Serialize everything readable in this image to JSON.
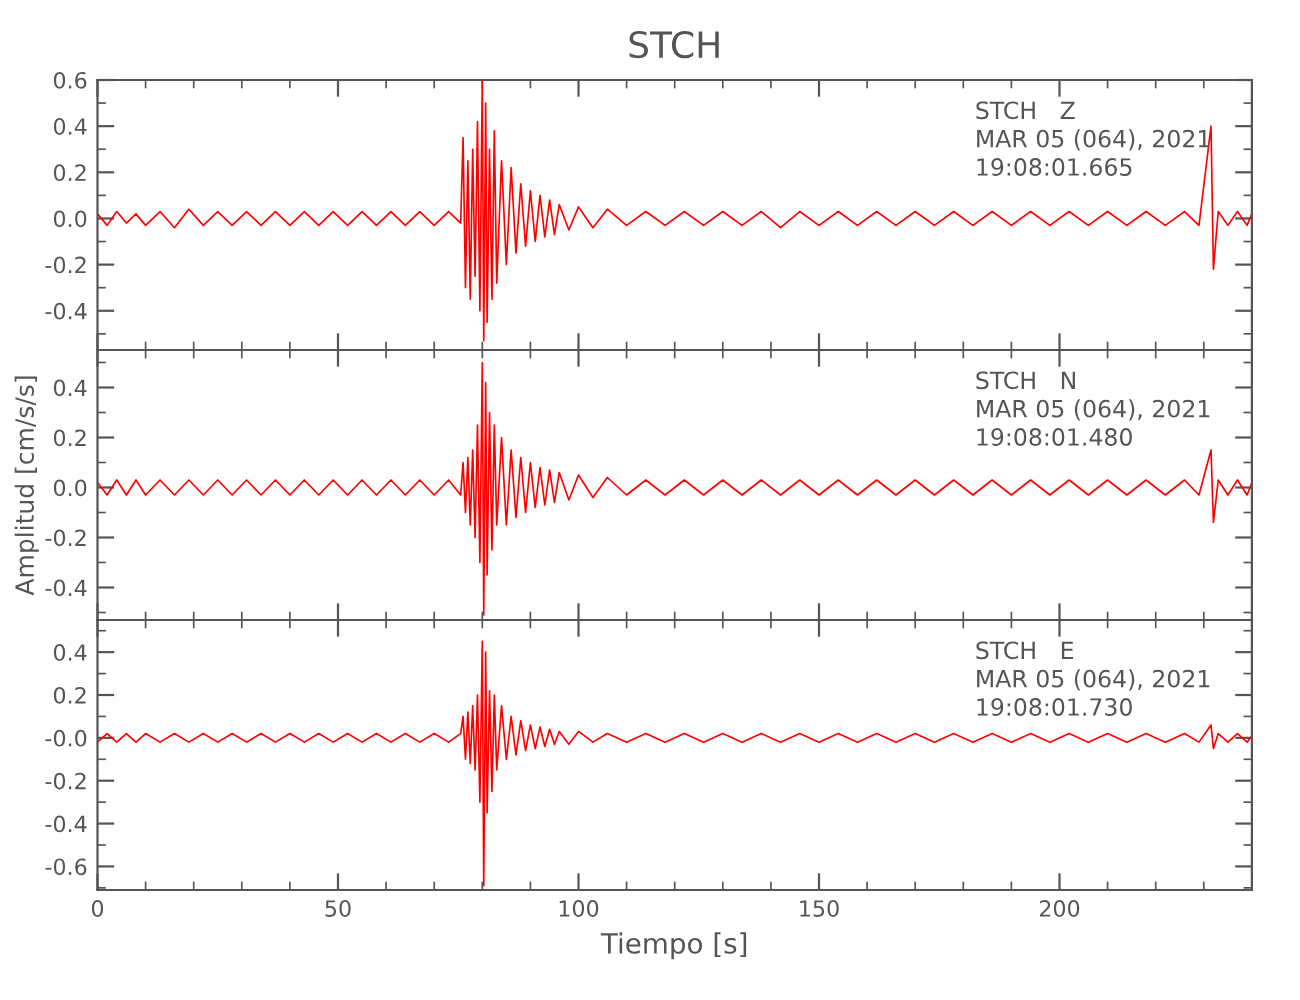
{
  "chart_data": [
    {
      "type": "line",
      "title": "STCH",
      "xlim": [
        0,
        240
      ],
      "xticks": [
        0,
        50,
        100,
        150,
        200
      ],
      "ylim": [
        -0.57,
        0.6
      ],
      "yticks": [
        -0.4,
        -0.2,
        {
          "value": 0.0,
          "label": "0.0"
        },
        0.2,
        0.4,
        0.6
      ],
      "tick_labels": "y",
      "grid": false,
      "marker": "none",
      "line_style": "solid",
      "annotations": [
        "STCH   Z",
        "MAR 05 (064), 2021",
        "19:08:01.665"
      ],
      "series": [
        {
          "color": "#ff0000",
          "x": [
            0,
            2,
            4,
            6,
            8,
            10,
            13,
            16,
            19,
            22,
            25,
            28,
            31,
            34,
            37,
            40,
            43,
            46,
            49,
            52,
            55,
            58,
            61,
            64,
            67,
            70,
            73,
            75.5,
            76,
            76.5,
            77,
            77.5,
            78,
            78.5,
            79,
            79.5,
            80,
            80.3,
            80.7,
            81,
            81.5,
            82,
            82.5,
            83,
            84,
            85,
            86,
            87,
            88,
            89,
            90,
            91,
            92,
            93,
            94,
            95,
            96,
            98,
            100,
            103,
            106,
            110,
            114,
            118,
            122,
            126,
            130,
            134,
            138,
            142,
            146,
            150,
            154,
            158,
            162,
            166,
            170,
            174,
            178,
            182,
            186,
            190,
            194,
            198,
            202,
            206,
            210,
            214,
            218,
            222,
            226,
            229,
            231.5,
            232,
            233,
            235,
            237,
            239,
            240
          ],
          "values": [
            0.02,
            -0.03,
            0.03,
            -0.02,
            0.02,
            -0.03,
            0.03,
            -0.04,
            0.04,
            -0.03,
            0.03,
            -0.03,
            0.03,
            -0.03,
            0.03,
            -0.03,
            0.03,
            -0.03,
            0.03,
            -0.03,
            0.03,
            -0.03,
            0.03,
            -0.03,
            0.03,
            -0.03,
            0.03,
            -0.02,
            0.35,
            -0.3,
            0.25,
            -0.35,
            0.3,
            -0.25,
            0.42,
            -0.4,
            0.6,
            -0.53,
            0.5,
            -0.45,
            0.3,
            -0.35,
            0.38,
            -0.28,
            0.25,
            -0.2,
            0.22,
            -0.15,
            0.15,
            -0.12,
            0.12,
            -0.1,
            0.1,
            -0.08,
            0.08,
            -0.07,
            0.06,
            -0.05,
            0.05,
            -0.04,
            0.04,
            -0.03,
            0.03,
            -0.03,
            0.03,
            -0.03,
            0.03,
            -0.03,
            0.03,
            -0.04,
            0.03,
            -0.03,
            0.03,
            -0.03,
            0.03,
            -0.03,
            0.03,
            -0.03,
            0.03,
            -0.03,
            0.03,
            -0.03,
            0.03,
            -0.03,
            0.03,
            -0.03,
            0.03,
            -0.03,
            0.03,
            -0.03,
            0.03,
            -0.03,
            0.4,
            -0.22,
            0.03,
            -0.03,
            0.03,
            -0.03,
            0.02
          ]
        }
      ]
    },
    {
      "type": "line",
      "ylabel": "Amplitud [cm/s/s]",
      "xlim": [
        0,
        240
      ],
      "xticks": [
        0,
        50,
        100,
        150,
        200
      ],
      "ylim": [
        -0.53,
        0.55
      ],
      "yticks": [
        -0.4,
        -0.2,
        {
          "value": 0.0,
          "label": "0.0"
        },
        0.2,
        0.4
      ],
      "tick_labels": "y",
      "grid": false,
      "marker": "none",
      "line_style": "solid",
      "annotations": [
        "STCH   N",
        "MAR 05 (064), 2021",
        "19:08:01.480"
      ],
      "series": [
        {
          "color": "#ff0000",
          "x": [
            0,
            2,
            4,
            6,
            8,
            10,
            13,
            16,
            19,
            22,
            25,
            28,
            31,
            34,
            37,
            40,
            43,
            46,
            49,
            52,
            55,
            58,
            61,
            64,
            67,
            70,
            73,
            75.5,
            76,
            76.5,
            77,
            77.5,
            78,
            78.5,
            79,
            79.5,
            80,
            80.3,
            80.7,
            81,
            81.5,
            82,
            82.5,
            83,
            84,
            85,
            86,
            87,
            88,
            89,
            90,
            91,
            92,
            93,
            94,
            95,
            96,
            98,
            100,
            103,
            106,
            110,
            114,
            118,
            122,
            126,
            130,
            134,
            138,
            142,
            146,
            150,
            154,
            158,
            162,
            166,
            170,
            174,
            178,
            182,
            186,
            190,
            194,
            198,
            202,
            206,
            210,
            214,
            218,
            222,
            226,
            229,
            231.5,
            232,
            233,
            235,
            237,
            239,
            240
          ],
          "values": [
            0.02,
            -0.03,
            0.03,
            -0.03,
            0.03,
            -0.03,
            0.03,
            -0.03,
            0.03,
            -0.03,
            0.03,
            -0.03,
            0.03,
            -0.03,
            0.03,
            -0.03,
            0.03,
            -0.03,
            0.03,
            -0.03,
            0.03,
            -0.03,
            0.03,
            -0.03,
            0.03,
            -0.03,
            0.03,
            -0.03,
            0.1,
            -0.1,
            0.12,
            -0.15,
            0.15,
            -0.2,
            0.25,
            -0.3,
            0.5,
            -0.51,
            0.42,
            -0.35,
            0.3,
            -0.25,
            0.25,
            -0.15,
            0.2,
            -0.15,
            0.15,
            -0.12,
            0.12,
            -0.1,
            0.1,
            -0.08,
            0.08,
            -0.07,
            0.07,
            -0.06,
            0.06,
            -0.05,
            0.05,
            -0.04,
            0.04,
            -0.03,
            0.03,
            -0.03,
            0.03,
            -0.03,
            0.03,
            -0.03,
            0.03,
            -0.03,
            0.03,
            -0.03,
            0.03,
            -0.03,
            0.03,
            -0.03,
            0.03,
            -0.03,
            0.03,
            -0.03,
            0.03,
            -0.03,
            0.03,
            -0.03,
            0.03,
            -0.03,
            0.03,
            -0.03,
            0.03,
            -0.03,
            0.03,
            -0.03,
            0.15,
            -0.14,
            0.03,
            -0.03,
            0.03,
            -0.03,
            0.02
          ]
        }
      ]
    },
    {
      "type": "line",
      "xlabel": "Tiempo [s]",
      "xlim": [
        0,
        240
      ],
      "xticks": [
        0,
        50,
        100,
        150,
        200
      ],
      "ylim": [
        -0.71,
        0.55
      ],
      "yticks": [
        {
          "value": -0.6,
          "label": "-0.6"
        },
        {
          "value": -0.4,
          "label": "-0.4"
        },
        {
          "value": -0.2,
          "label": "-0.2"
        },
        {
          "value": 0.0,
          "label": "-0.0"
        },
        {
          "value": 0.2,
          "label": "0.2"
        },
        {
          "value": 0.4,
          "label": "0.4"
        }
      ],
      "grid": false,
      "marker": "none",
      "line_style": "solid",
      "annotations": [
        "STCH   E",
        "MAR 05 (064), 2021",
        "19:08:01.730"
      ],
      "series": [
        {
          "color": "#ff0000",
          "x": [
            0,
            2,
            4,
            6,
            8,
            10,
            13,
            16,
            19,
            22,
            25,
            28,
            31,
            34,
            37,
            40,
            43,
            46,
            49,
            52,
            55,
            58,
            61,
            64,
            67,
            70,
            73,
            75.5,
            76,
            76.5,
            77,
            77.5,
            78,
            78.5,
            79,
            79.5,
            80,
            80.3,
            80.7,
            81,
            81.5,
            82,
            82.5,
            83,
            84,
            85,
            86,
            87,
            88,
            89,
            90,
            91,
            92,
            93,
            94,
            95,
            96,
            98,
            100,
            103,
            106,
            110,
            114,
            118,
            122,
            126,
            130,
            134,
            138,
            142,
            146,
            150,
            154,
            158,
            162,
            166,
            170,
            174,
            178,
            182,
            186,
            190,
            194,
            198,
            202,
            206,
            210,
            214,
            218,
            222,
            226,
            229,
            231.5,
            232,
            233,
            235,
            237,
            239,
            240
          ],
          "values": [
            -0.02,
            0.02,
            -0.02,
            0.02,
            -0.02,
            0.02,
            -0.02,
            0.02,
            -0.02,
            0.02,
            -0.02,
            0.02,
            -0.02,
            0.02,
            -0.02,
            0.02,
            -0.02,
            0.02,
            -0.02,
            0.02,
            -0.02,
            0.02,
            -0.02,
            0.02,
            -0.02,
            0.02,
            -0.02,
            0.02,
            0.1,
            -0.1,
            0.12,
            -0.12,
            0.15,
            -0.15,
            0.2,
            -0.3,
            0.45,
            -0.69,
            0.4,
            -0.35,
            0.22,
            -0.25,
            0.2,
            -0.15,
            0.15,
            -0.1,
            0.1,
            -0.08,
            0.08,
            -0.06,
            0.06,
            -0.05,
            0.05,
            -0.04,
            0.04,
            -0.03,
            0.03,
            -0.03,
            0.03,
            -0.02,
            0.02,
            -0.02,
            0.02,
            -0.02,
            0.02,
            -0.02,
            0.02,
            -0.02,
            0.02,
            -0.02,
            0.02,
            -0.02,
            0.02,
            -0.02,
            0.02,
            -0.02,
            0.02,
            -0.02,
            0.02,
            -0.02,
            0.02,
            -0.02,
            0.02,
            -0.02,
            0.02,
            -0.02,
            0.02,
            -0.02,
            0.02,
            -0.02,
            0.02,
            -0.02,
            0.06,
            -0.05,
            0.02,
            -0.02,
            0.02,
            -0.02,
            0.01
          ]
        }
      ]
    }
  ]
}
